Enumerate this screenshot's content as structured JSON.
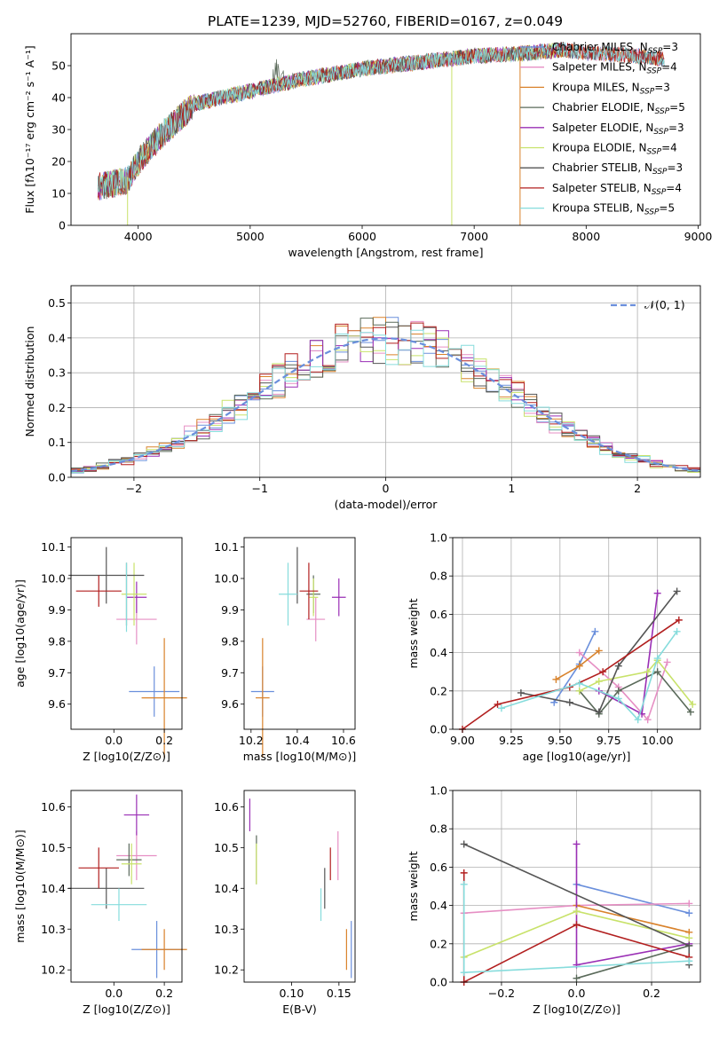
{
  "figure_title": "PLATE=1239, MJD=52760, FIBERID=0167, z=0.049",
  "colors": {
    "Chabrier MILES": "#6a8fdc",
    "Salpeter MILES": "#e68fc4",
    "Kroupa MILES": "#d9822b",
    "Chabrier ELODIE": "#5a6a5a",
    "Salpeter ELODIE": "#9a2fb5",
    "Kroupa ELODIE": "#c8e26a",
    "Chabrier STELIB": "#555555",
    "Salpeter STELIB": "#b21f1f",
    "Kroupa STELIB": "#86dcdc"
  },
  "legend_spectrum": [
    {
      "key": "Chabrier MILES",
      "label": "Chabrier MILES, N",
      "nssp": "=3"
    },
    {
      "key": "Salpeter MILES",
      "label": "Salpeter MILES, N",
      "nssp": "=4"
    },
    {
      "key": "Kroupa MILES",
      "label": "Kroupa MILES, N",
      "nssp": "=3"
    },
    {
      "key": "Chabrier ELODIE",
      "label": "Chabrier ELODIE, N",
      "nssp": "=5"
    },
    {
      "key": "Salpeter ELODIE",
      "label": "Salpeter ELODIE, N",
      "nssp": "=3"
    },
    {
      "key": "Kroupa ELODIE",
      "label": "Kroupa ELODIE, N",
      "nssp": "=4"
    },
    {
      "key": "Chabrier STELIB",
      "label": "Chabrier STELIB, N",
      "nssp": "=3"
    },
    {
      "key": "Salpeter STELIB",
      "label": "Salpeter STELIB, N",
      "nssp": "=4"
    },
    {
      "key": "Kroupa STELIB",
      "label": "Kroupa STELIB, N",
      "nssp": "=5"
    }
  ],
  "chart_data": [
    {
      "id": "spectrum",
      "type": "line",
      "xlabel": "wavelength [Angstrom, rest frame]",
      "ylabel": "Flux [fλ10⁻¹⁷ erg cm⁻² s⁻¹ A⁻¹]",
      "xlim": [
        3400,
        9020
      ],
      "ylim": [
        0,
        60
      ],
      "xticks": [
        4000,
        5000,
        6000,
        7000,
        8000,
        9000
      ],
      "yticks": [
        0,
        10,
        20,
        30,
        40,
        50
      ],
      "envelope": {
        "x": [
          3640,
          3900,
          4000,
          4200,
          4500,
          5000,
          5500,
          6000,
          6500,
          7000,
          7500,
          7800,
          8000,
          8500,
          8700
        ],
        "y": [
          12,
          14,
          20,
          28,
          38,
          42,
          46,
          49,
          51,
          53,
          54,
          55,
          54,
          53,
          52
        ]
      }
    },
    {
      "id": "residuals",
      "type": "step",
      "xlabel": "(data-model)/error",
      "ylabel": "Normed distribution",
      "xlim": [
        -2.5,
        2.5
      ],
      "ylim": [
        0,
        0.55
      ],
      "xticks": [
        -2,
        -1,
        0,
        1,
        2
      ],
      "yticks": [
        0.0,
        0.1,
        0.2,
        0.3,
        0.4,
        0.5
      ],
      "reference_label": "𝒩(0, 1)"
    },
    {
      "id": "age_vs_Z",
      "type": "errorbar",
      "xlabel": "Z [log10(Z/Z⊙)]",
      "ylabel": "age  [log10(age/yr)]",
      "xlim": [
        -0.17,
        0.27
      ],
      "ylim": [
        9.52,
        10.13
      ],
      "xticks": [
        0.0,
        0.2
      ],
      "yticks": [
        9.6,
        9.7,
        9.8,
        9.9,
        10.0,
        10.1
      ],
      "points": [
        {
          "s": "Chabrier MILES",
          "x": 0.16,
          "xe": 0.1,
          "y": 9.64,
          "ye": 0.08
        },
        {
          "s": "Salpeter MILES",
          "x": 0.09,
          "xe": 0.08,
          "y": 9.87,
          "ye": 0.08
        },
        {
          "s": "Kroupa MILES",
          "x": 0.2,
          "xe": 0.09,
          "y": 9.62,
          "ye": 0.19
        },
        {
          "s": "Chabrier ELODIE",
          "x": 0.05,
          "xe": 0.0,
          "y": 9.95,
          "ye": 0.1
        },
        {
          "s": "Salpeter ELODIE",
          "x": 0.09,
          "xe": 0.04,
          "y": 9.94,
          "ye": 0.05
        },
        {
          "s": "Kroupa ELODIE",
          "x": 0.08,
          "xe": 0.05,
          "y": 9.95,
          "ye": 0.1
        },
        {
          "s": "Chabrier STELIB",
          "x": -0.03,
          "xe": 0.15,
          "y": 10.01,
          "ye": 0.09
        },
        {
          "s": "Salpeter STELIB",
          "x": -0.06,
          "xe": 0.09,
          "y": 9.96,
          "ye": 0.05
        },
        {
          "s": "Kroupa STELIB",
          "x": 0.05,
          "xe": 0.0,
          "y": 9.94,
          "ye": 0.11
        }
      ]
    },
    {
      "id": "age_vs_mass",
      "type": "errorbar",
      "xlabel": "mass [log10(M/M⊙)]",
      "ylabel": "",
      "xlim": [
        10.17,
        10.65
      ],
      "ylim": [
        9.52,
        10.13
      ],
      "xticks": [
        10.2,
        10.4,
        10.6
      ],
      "yticks": [
        9.6,
        9.7,
        9.8,
        9.9,
        10.0,
        10.1
      ],
      "points": [
        {
          "s": "Chabrier MILES",
          "x": 10.25,
          "xe": 0.05,
          "y": 9.64,
          "ye": 0.08
        },
        {
          "s": "Salpeter MILES",
          "x": 10.48,
          "xe": 0.04,
          "y": 9.87,
          "ye": 0.07
        },
        {
          "s": "Kroupa MILES",
          "x": 10.25,
          "xe": 0.03,
          "y": 9.62,
          "ye": 0.19
        },
        {
          "s": "Chabrier ELODIE",
          "x": 10.47,
          "xe": 0.03,
          "y": 9.95,
          "ye": 0.06
        },
        {
          "s": "Salpeter ELODIE",
          "x": 10.58,
          "xe": 0.03,
          "y": 9.94,
          "ye": 0.06
        },
        {
          "s": "Kroupa ELODIE",
          "x": 10.47,
          "xe": 0.02,
          "y": 9.94,
          "ye": 0.06
        },
        {
          "s": "Chabrier STELIB",
          "x": 10.4,
          "xe": 0.0,
          "y": 10.01,
          "ye": 0.09
        },
        {
          "s": "Salpeter STELIB",
          "x": 10.45,
          "xe": 0.04,
          "y": 9.96,
          "ye": 0.09
        },
        {
          "s": "Kroupa STELIB",
          "x": 10.36,
          "xe": 0.04,
          "y": 9.95,
          "ye": 0.1
        }
      ]
    },
    {
      "id": "weight_vs_age",
      "type": "line",
      "xlabel": "age  [log10(age/yr)]",
      "ylabel": "mass weight",
      "xlim": [
        8.95,
        10.22
      ],
      "ylim": [
        0,
        1.0
      ],
      "xticks": [
        9.0,
        9.25,
        9.5,
        9.75,
        10.0
      ],
      "yticks": [
        0.0,
        0.2,
        0.4,
        0.6,
        0.8,
        1.0
      ],
      "series": [
        {
          "s": "Chabrier MILES",
          "x": [
            9.47,
            9.6,
            9.68
          ],
          "y": [
            0.14,
            0.34,
            0.51
          ]
        },
        {
          "s": "Salpeter MILES",
          "x": [
            9.6,
            9.8,
            9.95,
            10.05
          ],
          "y": [
            0.4,
            0.22,
            0.05,
            0.35
          ]
        },
        {
          "s": "Kroupa MILES",
          "x": [
            9.48,
            9.6,
            9.7
          ],
          "y": [
            0.26,
            0.33,
            0.41
          ]
        },
        {
          "s": "Chabrier ELODIE",
          "x": [
            9.6,
            9.7,
            9.8,
            10.0,
            10.17
          ],
          "y": [
            0.2,
            0.08,
            0.2,
            0.3,
            0.09
          ]
        },
        {
          "s": "Salpeter ELODIE",
          "x": [
            9.7,
            9.92,
            10.0
          ],
          "y": [
            0.2,
            0.08,
            0.71
          ]
        },
        {
          "s": "Kroupa ELODIE",
          "x": [
            9.6,
            9.7,
            9.95,
            10.0,
            10.18
          ],
          "y": [
            0.2,
            0.25,
            0.3,
            0.36,
            0.13
          ]
        },
        {
          "s": "Chabrier STELIB",
          "x": [
            9.3,
            9.55,
            9.7,
            9.8,
            10.1
          ],
          "y": [
            0.19,
            0.14,
            0.09,
            0.33,
            0.72
          ]
        },
        {
          "s": "Salpeter STELIB",
          "x": [
            9.0,
            9.18,
            9.55,
            9.72,
            10.11
          ],
          "y": [
            0.0,
            0.13,
            0.22,
            0.3,
            0.57
          ]
        },
        {
          "s": "Kroupa STELIB",
          "x": [
            9.2,
            9.6,
            9.8,
            9.9,
            10.0,
            10.1
          ],
          "y": [
            0.11,
            0.24,
            0.16,
            0.05,
            0.37,
            0.51
          ]
        }
      ]
    },
    {
      "id": "mass_vs_Z",
      "type": "errorbar",
      "xlabel": "Z [log10(Z/Z⊙)]",
      "ylabel": "mass [log10(M/M⊙)]",
      "xlim": [
        -0.17,
        0.27
      ],
      "ylim": [
        10.17,
        10.64
      ],
      "xticks": [
        0.0,
        0.2
      ],
      "yticks": [
        10.2,
        10.3,
        10.4,
        10.5,
        10.6
      ],
      "points": [
        {
          "s": "Chabrier MILES",
          "x": 0.17,
          "xe": 0.1,
          "y": 10.25,
          "ye": 0.07
        },
        {
          "s": "Salpeter MILES",
          "x": 0.09,
          "xe": 0.08,
          "y": 10.48,
          "ye": 0.06
        },
        {
          "s": "Kroupa MILES",
          "x": 0.2,
          "xe": 0.09,
          "y": 10.25,
          "ye": 0.05
        },
        {
          "s": "Chabrier ELODIE",
          "x": 0.06,
          "xe": 0.05,
          "y": 10.47,
          "ye": 0.04
        },
        {
          "s": "Salpeter ELODIE",
          "x": 0.09,
          "xe": 0.05,
          "y": 10.58,
          "ye": 0.05
        },
        {
          "s": "Kroupa ELODIE",
          "x": 0.07,
          "xe": 0.04,
          "y": 10.46,
          "ye": 0.05
        },
        {
          "s": "Chabrier STELIB",
          "x": -0.03,
          "xe": 0.15,
          "y": 10.4,
          "ye": 0.05
        },
        {
          "s": "Salpeter STELIB",
          "x": -0.06,
          "xe": 0.08,
          "y": 10.45,
          "ye": 0.05
        },
        {
          "s": "Kroupa STELIB",
          "x": 0.02,
          "xe": 0.11,
          "y": 10.36,
          "ye": 0.04
        }
      ]
    },
    {
      "id": "mass_vs_ebv",
      "type": "errorbar",
      "xlabel": "E(B-V)",
      "ylabel": "",
      "xlim": [
        0.05,
        0.167
      ],
      "ylim": [
        10.17,
        10.64
      ],
      "xticks": [
        0.1,
        0.15
      ],
      "yticks": [
        10.2,
        10.3,
        10.4,
        10.5,
        10.6
      ],
      "points": [
        {
          "s": "Chabrier MILES",
          "x": 0.163,
          "xe": 0.0,
          "y": 10.25,
          "ye": 0.07
        },
        {
          "s": "Salpeter MILES",
          "x": 0.149,
          "xe": 0.0,
          "y": 10.48,
          "ye": 0.06
        },
        {
          "s": "Kroupa MILES",
          "x": 0.158,
          "xe": 0.0,
          "y": 10.25,
          "ye": 0.05
        },
        {
          "s": "Chabrier ELODIE",
          "x": 0.063,
          "xe": 0.0,
          "y": 10.47,
          "ye": 0.06
        },
        {
          "s": "Salpeter ELODIE",
          "x": 0.056,
          "xe": 0.0,
          "y": 10.58,
          "ye": 0.04
        },
        {
          "s": "Kroupa ELODIE",
          "x": 0.063,
          "xe": 0.0,
          "y": 10.46,
          "ye": 0.05
        },
        {
          "s": "Chabrier STELIB",
          "x": 0.135,
          "xe": 0.0,
          "y": 10.4,
          "ye": 0.05
        },
        {
          "s": "Salpeter STELIB",
          "x": 0.141,
          "xe": 0.0,
          "y": 10.46,
          "ye": 0.04
        },
        {
          "s": "Kroupa STELIB",
          "x": 0.131,
          "xe": 0.0,
          "y": 10.36,
          "ye": 0.04
        }
      ]
    },
    {
      "id": "weight_vs_Z",
      "type": "line",
      "xlabel": "Z [log10(Z/Z⊙)]",
      "ylabel": "mass weight",
      "xlim": [
        -0.33,
        0.33
      ],
      "ylim": [
        0,
        1.0
      ],
      "xticks": [
        -0.2,
        0.0,
        0.2
      ],
      "yticks": [
        0.0,
        0.2,
        0.4,
        0.6,
        0.8,
        1.0
      ],
      "series": [
        {
          "s": "Chabrier MILES",
          "x": [
            0.0,
            0.3
          ],
          "y": [
            0.51,
            0.36
          ]
        },
        {
          "s": "Salpeter MILES",
          "x": [
            -0.3,
            0.0,
            0.3
          ],
          "y": [
            0.36,
            0.4,
            0.41
          ]
        },
        {
          "s": "Kroupa MILES",
          "x": [
            0.0,
            0.3
          ],
          "y": [
            0.4,
            0.26
          ]
        },
        {
          "s": "Chabrier ELODIE",
          "x": [
            0.0,
            0.3
          ],
          "y": [
            0.02,
            0.19
          ]
        },
        {
          "s": "Salpeter ELODIE",
          "x": [
            0.0,
            0.0,
            0.3
          ],
          "y": [
            0.72,
            0.09,
            0.2
          ]
        },
        {
          "s": "Kroupa ELODIE",
          "x": [
            -0.3,
            0.0,
            0.3
          ],
          "y": [
            0.13,
            0.37,
            0.23
          ]
        },
        {
          "s": "Chabrier STELIB",
          "x": [
            -0.3,
            0.3,
            0.3
          ],
          "y": [
            0.72,
            0.19,
            0.09
          ]
        },
        {
          "s": "Salpeter STELIB",
          "x": [
            -0.3,
            -0.3,
            0.0,
            0.3
          ],
          "y": [
            0.57,
            0.0,
            0.3,
            0.13
          ]
        },
        {
          "s": "Kroupa STELIB",
          "x": [
            -0.3,
            -0.3,
            0.3
          ],
          "y": [
            0.51,
            0.05,
            0.11
          ]
        }
      ]
    }
  ]
}
